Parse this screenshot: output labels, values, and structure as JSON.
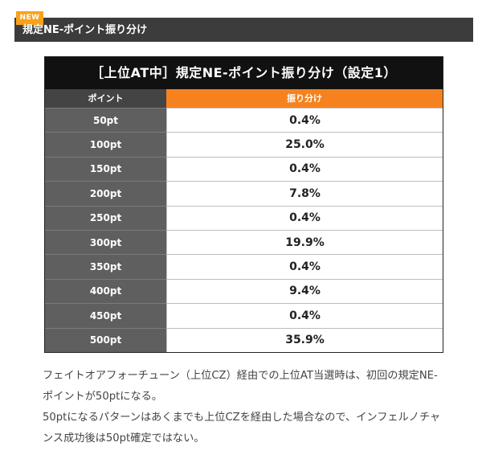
{
  "header": {
    "badge": "NEW",
    "title": "規定NE-ポイント振り分け"
  },
  "table": {
    "title": "［上位AT中］規定NE-ポイント振り分け（設定1）",
    "col_point": "ポイント",
    "col_rate": "振り分け"
  },
  "chart_data": {
    "type": "table",
    "title": "［上位AT中］規定NE-ポイント振り分け（設定1）",
    "columns": [
      "ポイント",
      "振り分け"
    ],
    "rows": [
      {
        "point": "50pt",
        "rate": "0.4%"
      },
      {
        "point": "100pt",
        "rate": "25.0%"
      },
      {
        "point": "150pt",
        "rate": "0.4%"
      },
      {
        "point": "200pt",
        "rate": "7.8%"
      },
      {
        "point": "250pt",
        "rate": "0.4%"
      },
      {
        "point": "300pt",
        "rate": "19.9%"
      },
      {
        "point": "350pt",
        "rate": "0.4%"
      },
      {
        "point": "400pt",
        "rate": "9.4%"
      },
      {
        "point": "450pt",
        "rate": "0.4%"
      },
      {
        "point": "500pt",
        "rate": "35.9%"
      }
    ]
  },
  "note": {
    "paragraph1": "フェイトオアフォーチューン（上位CZ）経由での上位AT当選時は、初回の規定NE-ポイントが50ptになる。",
    "paragraph2": "50ptになるパターンはあくまでも上位CZを経由した場合なので、インフェルノチャンス成功後は50pt確定ではない。"
  }
}
